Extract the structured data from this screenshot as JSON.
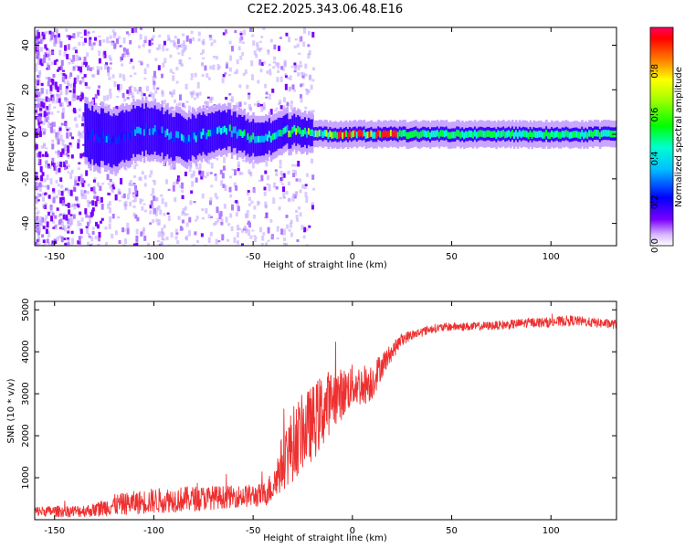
{
  "figure_title": "C2E2.2025.343.06.48.E16",
  "colors": {
    "snr_line": "#ee3030",
    "axis": "#000000",
    "background": "#ffffff"
  },
  "chart_data": [
    {
      "type": "heatmap",
      "title": "C2E2.2025.343.06.48.E16",
      "xlabel": "Height of straight line (km)",
      "ylabel": "Frequency (Hz)",
      "xlim": [
        -160,
        133
      ],
      "ylim": [
        -50,
        48
      ],
      "xticks": [
        -150,
        -100,
        -50,
        0,
        50,
        100
      ],
      "yticks": [
        -40,
        -20,
        0,
        20,
        40
      ],
      "colorbar": {
        "label": "Normalized spectral amplitude",
        "range": [
          0.0,
          1.0
        ],
        "ticks": [
          "0.0",
          "0.2",
          "0.4",
          "0.6",
          "0.8"
        ],
        "colormap": "hsv (violet-blue-cyan-green-yellow-red)"
      },
      "band": {
        "center_frequency_hz": 0,
        "note": "Narrow bright band near 0 Hz from about -30 km to 133 km; noisy scattered purple speckle below -120 km; peak amplitudes (~0.9) near 0-20 km."
      }
    },
    {
      "type": "line",
      "xlabel": "Height of straight line (km)",
      "ylabel": "SNR (10 * v/v)",
      "xlim": [
        -160,
        133
      ],
      "ylim": [
        0,
        5200
      ],
      "xticks": [
        -150,
        -100,
        -50,
        0,
        50,
        100
      ],
      "yticks": [
        1000,
        2000,
        3000,
        4000,
        5000
      ],
      "series": [
        {
          "name": "SNR",
          "x": [
            -160,
            -140,
            -130,
            -120,
            -100,
            -80,
            -60,
            -45,
            -40,
            -35,
            -30,
            -25,
            -20,
            -15,
            -10,
            -5,
            0,
            5,
            10,
            15,
            20,
            25,
            30,
            40,
            50,
            60,
            70,
            80,
            90,
            100,
            110,
            120,
            133
          ],
          "mean": [
            200,
            200,
            230,
            350,
            450,
            500,
            550,
            580,
            800,
            1400,
            1800,
            2100,
            2300,
            2600,
            2900,
            3000,
            3200,
            3200,
            3300,
            3700,
            4000,
            4300,
            4400,
            4550,
            4600,
            4600,
            4620,
            4650,
            4700,
            4700,
            4750,
            4700,
            4650
          ],
          "noise": [
            120,
            140,
            160,
            250,
            300,
            300,
            260,
            280,
            400,
            700,
            900,
            900,
            900,
            900,
            700,
            600,
            500,
            500,
            450,
            300,
            200,
            150,
            120,
            100,
            100,
            100,
            100,
            110,
            110,
            120,
            120,
            110,
            110
          ]
        }
      ]
    }
  ]
}
